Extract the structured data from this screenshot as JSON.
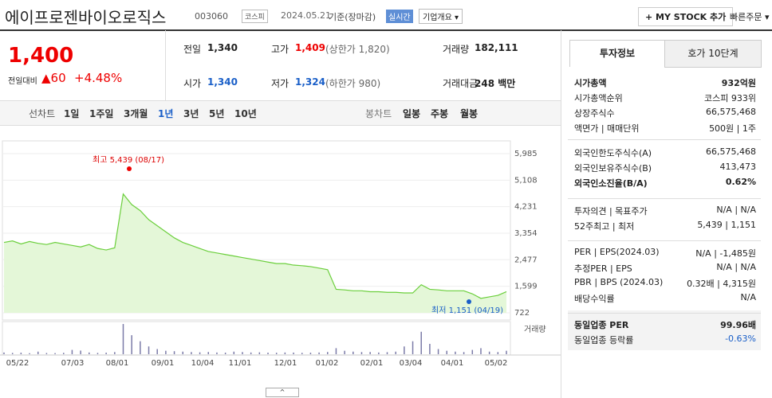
{
  "header": {
    "title": "에이프로젠바이오로직스",
    "code": "003060",
    "market": "코스피",
    "date": "2024.05.21",
    "basis": "기준(장마감)",
    "realtime": "실시간",
    "company": "기업개요 ▾",
    "mystock": "+ MY STOCK 추가",
    "quick": "빠른주문 ▾"
  },
  "price": {
    "now": "1,400",
    "change_label": "전일대비",
    "change": "▲60",
    "rate": "+4.48%"
  },
  "stats": [
    [
      "전일",
      "1,340",
      ""
    ],
    [
      "고가",
      "1,409",
      "(상한가 1,820)"
    ],
    [
      "거래량",
      "182,111",
      ""
    ],
    [
      "시가",
      "1,340",
      ""
    ],
    [
      "저가",
      "1,324",
      "(하한가 980)"
    ],
    [
      "거래대금",
      "248 백만",
      ""
    ]
  ],
  "periods": {
    "line": "선차트",
    "items": [
      "1일",
      "1주일",
      "3개월",
      "1년",
      "3년",
      "5년",
      "10년"
    ],
    "candle": "봉차트",
    "candles": [
      "일봉",
      "주봉",
      "월봉"
    ]
  },
  "chart": {
    "yticks": [
      {
        "value": 5985,
        "label": "5,985"
      },
      {
        "value": 5108,
        "label": "5,108"
      },
      {
        "value": 4231,
        "label": "4,231"
      },
      {
        "value": 3354,
        "label": "3,354"
      },
      {
        "value": 2477,
        "label": "2,477"
      },
      {
        "value": 1599,
        "label": "1,599"
      },
      {
        "value": 722,
        "label": "722"
      }
    ],
    "ylim": [
      722,
      5985
    ],
    "high_label": "최고 5,439 (08/17)",
    "low_label": "최저 1,151 (04/19)",
    "volume_label": "거래량",
    "xlabels": [
      "05/22",
      "07/03",
      "08/01",
      "09/01",
      "10/04",
      "11/01",
      "12/01",
      "01/02",
      "02/01",
      "03/04",
      "04/01",
      "05/02"
    ],
    "values": [
      3050,
      3100,
      3000,
      3080,
      3020,
      2980,
      3050,
      3000,
      2950,
      2900,
      2980,
      2850,
      2800,
      2870,
      4650,
      4300,
      4100,
      3800,
      3600,
      3400,
      3200,
      3050,
      2950,
      2850,
      2750,
      2700,
      2650,
      2600,
      2550,
      2500,
      2450,
      2400,
      2350,
      2350,
      2300,
      2280,
      2250,
      2200,
      2150,
      1500,
      1480,
      1450,
      1450,
      1420,
      1420,
      1400,
      1400,
      1380,
      1380,
      1650,
      1500,
      1480,
      1450,
      1450,
      1450,
      1350,
      1200,
      1250,
      1300,
      1420
    ],
    "volume": [
      200,
      150,
      180,
      120,
      300,
      140,
      130,
      160,
      500,
      420,
      200,
      150,
      180,
      250,
      3500,
      2200,
      1500,
      900,
      600,
      400,
      350,
      300,
      250,
      220,
      260,
      200,
      180,
      300,
      250,
      200,
      220,
      180,
      170,
      200,
      190,
      160,
      180,
      200,
      260,
      700,
      400,
      300,
      250,
      260,
      200,
      240,
      300,
      900,
      1500,
      2600,
      1200,
      600,
      400,
      300,
      250,
      500,
      700,
      300,
      250,
      400
    ]
  },
  "info": {
    "tabs": [
      "투자정보",
      "호가 10단계"
    ],
    "rows": [
      [
        "시가총액",
        "932억원"
      ],
      [
        "시가총액순위",
        "코스피 933위"
      ],
      [
        "상장주식수",
        "66,575,468"
      ],
      [
        "액면가 | 매매단위",
        "500원 | 1주"
      ],
      [
        "외국인한도주식수(A)",
        "66,575,468"
      ],
      [
        "외국인보유주식수(B)",
        "413,473"
      ],
      [
        "외국인소진율(B/A)",
        "0.62%"
      ],
      [
        "투자의견 | 목표주가",
        "N/A | N/A"
      ],
      [
        "52주최고 | 최저",
        "5,439 | 1,151"
      ],
      [
        "PER | EPS(2024.03)",
        "N/A | -1,485원"
      ],
      [
        "추정PER | EPS",
        "N/A | N/A"
      ],
      [
        "PBR | BPS (2024.03)",
        "0.32배 | 4,315원"
      ],
      [
        "배당수익률",
        "N/A"
      ],
      [
        "동일업종 PER",
        "99.96배"
      ],
      [
        "동일업종 등락률",
        "-0.63%"
      ]
    ]
  }
}
